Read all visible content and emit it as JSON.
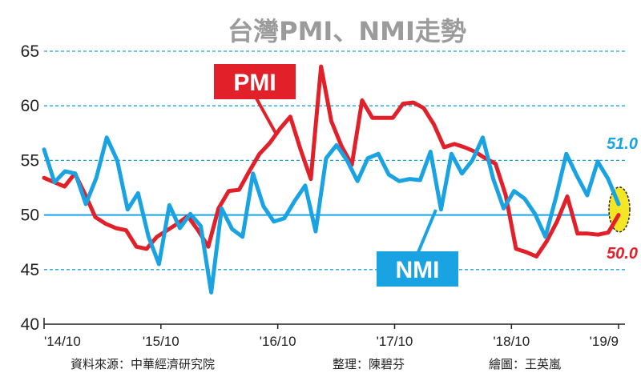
{
  "chart_data": {
    "type": "line",
    "title": "台灣PMI、NMI走勢",
    "ylim": [
      40,
      65
    ],
    "y_ticks": [
      40,
      45,
      50,
      55,
      60,
      65
    ],
    "x_tick_labels": [
      "'14/10",
      "'15/10",
      "'16/10",
      "'17/10",
      "'18/10",
      "'19/9"
    ],
    "x_range": [
      0,
      59
    ],
    "grid": "dashed-horizontal",
    "colors": {
      "pmi": "#e2202a",
      "nmi": "#1aa3e2",
      "baseline": "#1aa3e2",
      "highlight": "#f5e625"
    },
    "series": [
      {
        "name": "PMI",
        "color": "#e2202a",
        "values": [
          53.4,
          53.0,
          52.6,
          53.8,
          51.9,
          49.8,
          49.2,
          48.8,
          48.6,
          47.1,
          46.9,
          48.0,
          48.6,
          49.2,
          49.9,
          48.6,
          47.1,
          50.6,
          52.2,
          52.3,
          54.0,
          55.6,
          56.6,
          57.9,
          59.0,
          56.0,
          53.3,
          63.6,
          58.6,
          56.3,
          54.6,
          60.5,
          58.9,
          58.9,
          58.9,
          60.2,
          60.3,
          59.8,
          58.3,
          56.2,
          56.5,
          56.2,
          55.8,
          55.2,
          54.7,
          51.8,
          46.9,
          46.6,
          46.2,
          47.6,
          49.4,
          51.7,
          48.3,
          48.3,
          48.2,
          48.4,
          50.0
        ]
      },
      {
        "name": "NMI",
        "color": "#1aa3e2",
        "values": [
          56.0,
          53.0,
          54.0,
          53.8,
          51.0,
          53.4,
          57.1,
          55.0,
          50.5,
          52.0,
          48.0,
          45.5,
          50.9,
          48.8,
          50.1,
          49.0,
          42.9,
          50.6,
          48.7,
          48.0,
          53.8,
          50.8,
          49.4,
          49.7,
          51.3,
          52.7,
          48.5,
          55.2,
          56.4,
          55.0,
          53.1,
          55.2,
          55.6,
          53.7,
          53.1,
          53.3,
          53.2,
          55.8,
          50.5,
          55.6,
          53.8,
          55.0,
          57.1,
          53.3,
          50.6,
          52.2,
          51.5,
          50.1,
          48.0,
          51.6,
          55.6,
          53.6,
          51.8,
          54.9,
          53.3,
          51.0
        ]
      }
    ],
    "annotations": [
      {
        "text": "PMI",
        "series": "PMI"
      },
      {
        "text": "NMI",
        "series": "NMI"
      },
      {
        "text": "51.0",
        "series": "NMI",
        "value": 51.0
      },
      {
        "text": "50.0",
        "series": "PMI",
        "value": 50.0
      }
    ],
    "footer": {
      "source": "資料來源：中華經濟研究院",
      "editor": "整理：陳碧芬",
      "illustrator": "繪圖：王英嵐"
    }
  }
}
